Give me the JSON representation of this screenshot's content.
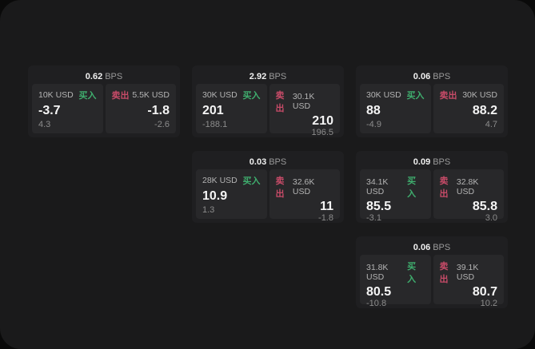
{
  "labels": {
    "bps": "BPS",
    "buy": "买入",
    "sell": "卖出"
  },
  "colors": {
    "buy": "#3fae6e",
    "sell": "#c74b68",
    "panel": "#1a1a1b",
    "card": "#1f1f21",
    "subpanel": "#28282a"
  },
  "cards": [
    {
      "row": 1,
      "col": 1,
      "bps": "0.62",
      "buy": {
        "amount": "10K USD",
        "value": "-3.7",
        "delta": "4.3"
      },
      "sell": {
        "amount": "5.5K USD",
        "value": "-1.8",
        "delta": "-2.6"
      }
    },
    {
      "row": 1,
      "col": 2,
      "bps": "2.92",
      "buy": {
        "amount": "30K USD",
        "value": "201",
        "delta": "-188.1"
      },
      "sell": {
        "amount": "30.1K USD",
        "value": "210",
        "delta": "196.5"
      }
    },
    {
      "row": 1,
      "col": 3,
      "bps": "0.06",
      "buy": {
        "amount": "30K USD",
        "value": "88",
        "delta": "-4.9"
      },
      "sell": {
        "amount": "30K USD",
        "value": "88.2",
        "delta": "4.7"
      }
    },
    {
      "row": 2,
      "col": 2,
      "bps": "0.03",
      "buy": {
        "amount": "28K USD",
        "value": "10.9",
        "delta": "1.3"
      },
      "sell": {
        "amount": "32.6K USD",
        "value": "11",
        "delta": "-1.8"
      }
    },
    {
      "row": 2,
      "col": 3,
      "bps": "0.09",
      "buy": {
        "amount": "34.1K USD",
        "value": "85.5",
        "delta": "-3.1"
      },
      "sell": {
        "amount": "32.8K USD",
        "value": "85.8",
        "delta": "3.0"
      }
    },
    {
      "row": 3,
      "col": 3,
      "bps": "0.06",
      "buy": {
        "amount": "31.8K USD",
        "value": "80.5",
        "delta": "-10.8"
      },
      "sell": {
        "amount": "39.1K USD",
        "value": "80.7",
        "delta": "10.2"
      }
    }
  ]
}
